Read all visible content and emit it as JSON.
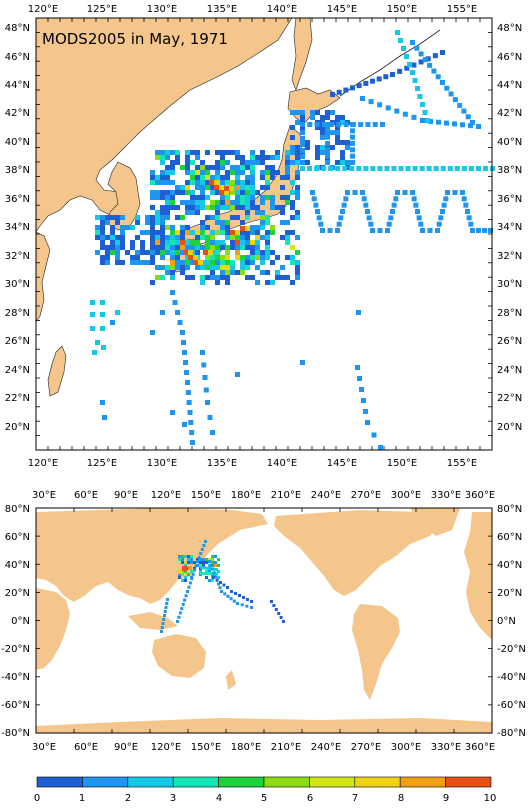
{
  "title": "MODS2005 in May, 1971",
  "colors": {
    "land": "#f5c68c",
    "ocean": "#ffffff",
    "frame": "#000000"
  },
  "top_map": {
    "x_labels": [
      "120°E",
      "125°E",
      "130°E",
      "135°E",
      "140°E",
      "145°E",
      "150°E",
      "155°E"
    ],
    "y_labels": [
      "48°N",
      "46°N",
      "44°N",
      "42°N",
      "40°N",
      "38°N",
      "36°N",
      "34°N",
      "32°N",
      "30°N",
      "28°N",
      "26°N",
      "24°N",
      "22°N",
      "20°N"
    ]
  },
  "bottom_map": {
    "x_labels": [
      "30°E",
      "60°E",
      "90°E",
      "120°E",
      "150°E",
      "180°E",
      "210°E",
      "240°E",
      "270°E",
      "300°E",
      "330°E",
      "360°E"
    ],
    "y_labels": [
      "80°N",
      "60°N",
      "40°N",
      "20°N",
      "0°N",
      "-20°N",
      "-40°N",
      "-60°N",
      "-80°N"
    ]
  },
  "legend": {
    "labels": [
      "0",
      "1",
      "2",
      "3",
      "4",
      "5",
      "6",
      "7",
      "8",
      "9",
      "10"
    ],
    "colors": [
      "#1e5fd2",
      "#1e96f0",
      "#14c8e6",
      "#14e6b4",
      "#1ed23c",
      "#8cdc14",
      "#d2e614",
      "#f0d214",
      "#f0a014",
      "#e65014"
    ]
  }
}
